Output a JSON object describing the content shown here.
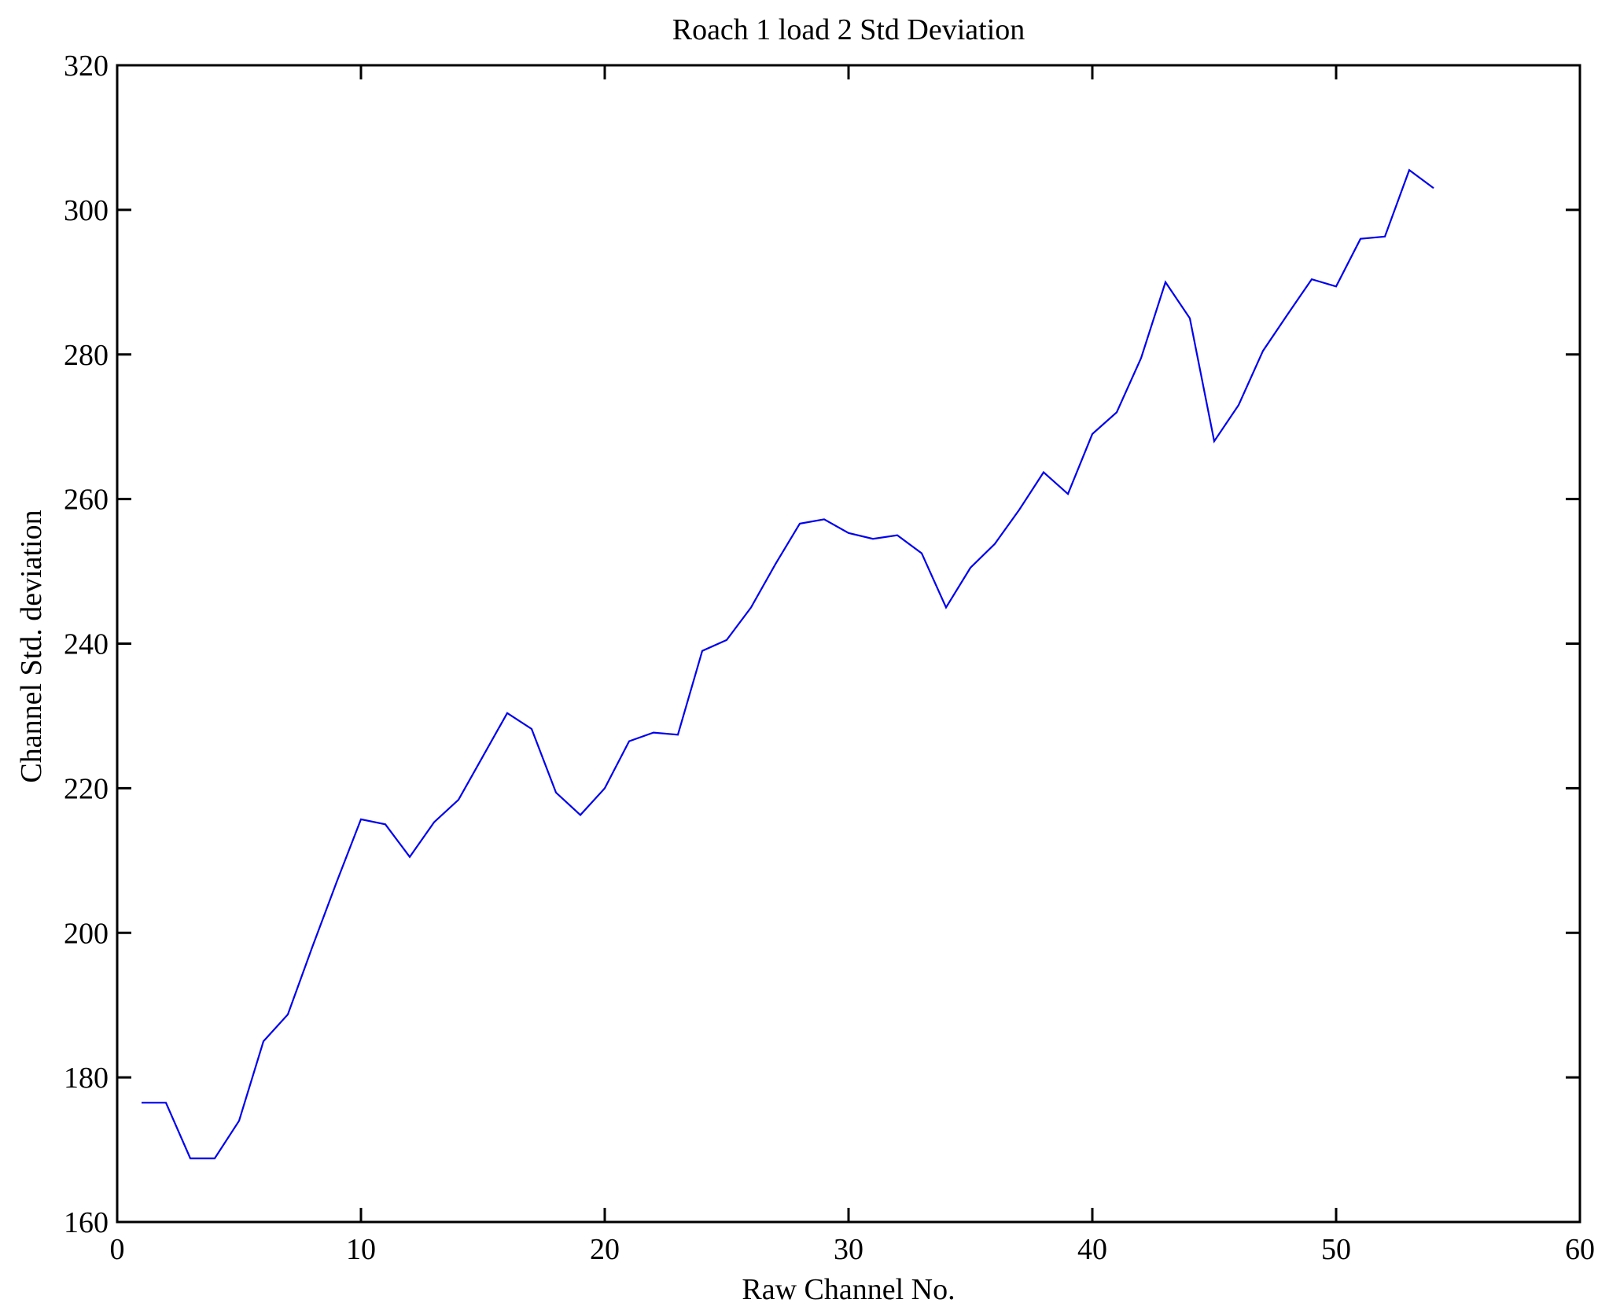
{
  "figure": {
    "title": "Roach 1 load 2 Std Deviation",
    "xlabel": "Raw Channel No.",
    "ylabel": "Channel Std. deviation"
  },
  "chart_data": {
    "type": "line",
    "title": "Roach 1 load 2 Std Deviation",
    "xlabel": "Raw Channel No.",
    "ylabel": "Channel Std. deviation",
    "x": [
      1,
      2,
      3,
      4,
      5,
      6,
      7,
      8,
      9,
      10,
      11,
      12,
      13,
      14,
      15,
      16,
      17,
      18,
      19,
      20,
      21,
      22,
      23,
      24,
      25,
      26,
      27,
      28,
      29,
      30,
      31,
      32,
      33,
      34,
      35,
      36,
      37,
      38,
      39,
      40,
      41,
      42,
      43,
      44,
      45,
      46,
      47,
      48,
      49,
      50,
      51,
      52,
      53,
      54
    ],
    "values": [
      176.5,
      176.5,
      168.8,
      168.8,
      174,
      185,
      188.7,
      198,
      207,
      215.7,
      215,
      210.5,
      215.3,
      218.4,
      224.4,
      230.4,
      228.2,
      219.4,
      216.3,
      220,
      226.5,
      227.7,
      227.4,
      239,
      240.5,
      245,
      251,
      256.6,
      257.2,
      255.3,
      254.5,
      255,
      252.5,
      245,
      250.5,
      253.8,
      258.5,
      263.7,
      260.7,
      269,
      272,
      279.5,
      290,
      285,
      268,
      273,
      280.5,
      285.5,
      290.4,
      289.4,
      296,
      296.3,
      305.5,
      303
    ],
    "xlim": [
      0,
      60
    ],
    "ylim": [
      160,
      320
    ],
    "xticks": [
      0,
      10,
      20,
      30,
      40,
      50,
      60
    ],
    "yticks": [
      160,
      180,
      200,
      220,
      240,
      260,
      280,
      300,
      320
    ],
    "grid": false,
    "line_color": "#0000ee",
    "axis_color": "#000000"
  }
}
